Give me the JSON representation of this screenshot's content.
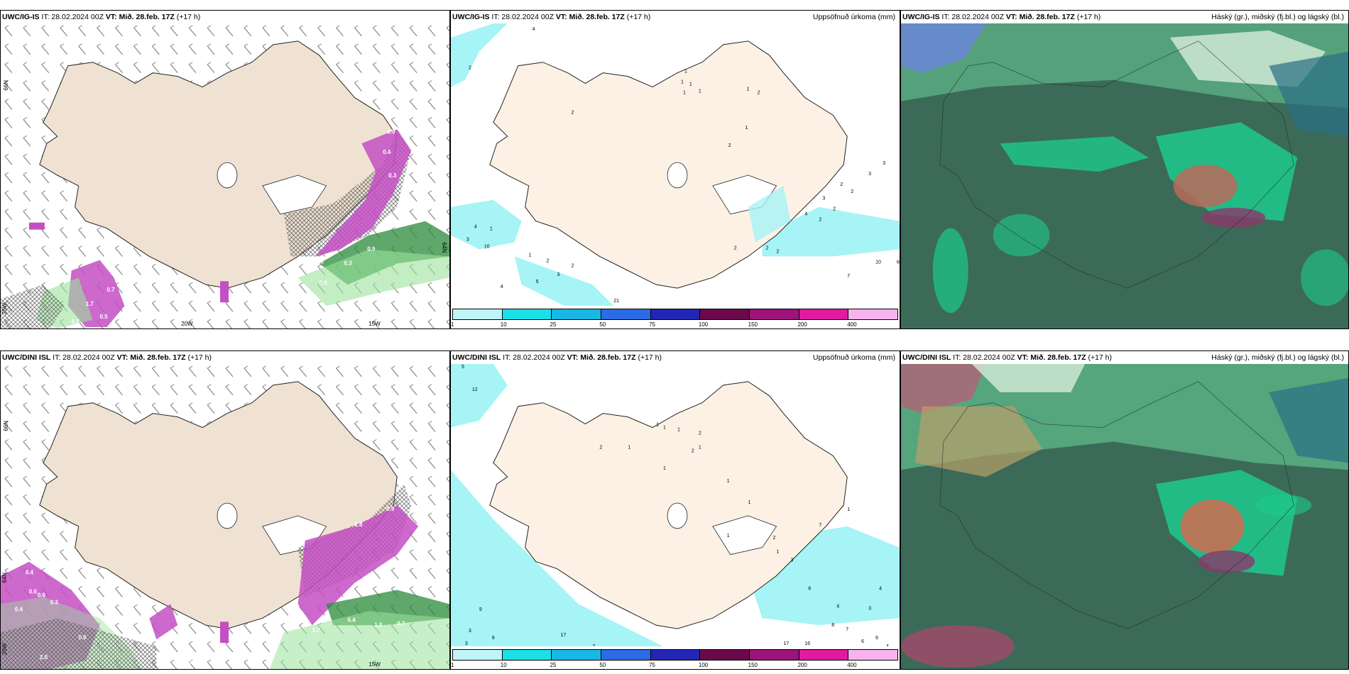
{
  "panels": {
    "top_left": {
      "model": "UWC/IG-IS",
      "it": "IT: 28.02.2024 00Z",
      "vt_label": "VT:",
      "vt": "Mið. 28.feb. 17Z",
      "lead": "(+17 h)",
      "right": ""
    },
    "top_mid": {
      "model": "UWC/IG-IS",
      "it": "IT: 28.02.2024 00Z",
      "vt_label": "VT:",
      "vt": "Mið. 28.feb. 17Z",
      "lead": "(+17 h)",
      "right": "Uppsöfnuð úrkoma (mm)"
    },
    "top_right": {
      "model": "UWC/IG-IS",
      "it": "IT: 28.02.2024 00Z",
      "vt_label": "VT:",
      "vt": "Mið. 28.feb. 17Z",
      "lead": "(+17 h)",
      "right": "Háský (gr.), miðský (fj.bl.) og lágský (bl.)"
    },
    "bot_left": {
      "model": "UWC/DINI ISL",
      "it": "IT: 28.02.2024 00Z",
      "vt_label": "VT:",
      "vt": "Mið. 28.feb. 17Z",
      "lead": "(+17 h)",
      "right": ""
    },
    "bot_mid": {
      "model": "UWC/DINI ISL",
      "it": "IT: 28.02.2024 00Z",
      "vt_label": "VT:",
      "vt": "Mið. 28.feb. 17Z",
      "lead": "(+17 h)",
      "right": "Uppsöfnuð úrkoma (mm)"
    },
    "bot_right": {
      "model": "UWC/DINI ISL",
      "it": "IT: 28.02.2024 00Z",
      "vt_label": "VT:",
      "vt": "Mið. 28.feb. 17Z",
      "lead": "(+17 h)",
      "right": "Háský (gr.), miðský (fj.bl.) og lágský (bl.)"
    }
  },
  "axis_labels": {
    "lat_66": "66N",
    "lat_64": "64N",
    "lon_25": "25W",
    "lon_20": "20W",
    "lon_15": "15W"
  },
  "legend": {
    "colors": [
      "#bff5f8",
      "#1ae0e8",
      "#19b7e6",
      "#2b6be6",
      "#2326b5",
      "#6a0a4a",
      "#9c1479",
      "#e11aa0",
      "#f7b3ef"
    ],
    "ticks": [
      "1",
      "10",
      "25",
      "50",
      "75",
      "100",
      "150",
      "200",
      "400"
    ]
  },
  "precip_top": [
    "4",
    "2",
    "1",
    "1",
    "1",
    "1",
    "1",
    "2",
    "1",
    "2",
    "1",
    "2",
    "4",
    "1",
    "10",
    "3",
    "1",
    "2",
    "4",
    "5",
    "3",
    "2",
    "21",
    "1",
    "2",
    "3",
    "4",
    "2",
    "2",
    "2",
    "7",
    "10",
    "6",
    "2",
    "2",
    "2",
    "3",
    "3"
  ],
  "precip_bot": [
    "5",
    "12",
    "1",
    "1",
    "1",
    "2",
    "1",
    "2",
    "1",
    "2",
    "1",
    "1",
    "1",
    "1",
    "2",
    "1",
    "3",
    "1",
    "7",
    "6",
    "4",
    "3",
    "4",
    "8",
    "17",
    "16",
    "7",
    "6",
    "6",
    "4",
    "9",
    "9",
    "3",
    "3",
    "4",
    "17",
    "2",
    "2"
  ],
  "pink_top": [
    "0.9",
    "0.4",
    "0.4",
    "0.3",
    "2.0",
    "0.9",
    "0.3",
    "0.8",
    "0.9",
    "1.7",
    "0.5",
    "0.3",
    "0.3",
    "0.7"
  ],
  "pink_bot": [
    "0.4",
    "0.6",
    "0.6",
    "0.3",
    "0.4",
    "0.6",
    "2.0",
    "0.5",
    "0.5",
    "0.9",
    "1.8",
    "1.7",
    "0.4",
    "1.0",
    "0.7",
    "0.5",
    "0.8"
  ],
  "colors": {
    "land": "#efe2d2",
    "precip_cyan": "#a6f4f6",
    "magenta": "#c44fc4",
    "green": "#2a8a3a",
    "cloud_dark": "#3b6b58",
    "cloud_green": "#1ec98d"
  }
}
